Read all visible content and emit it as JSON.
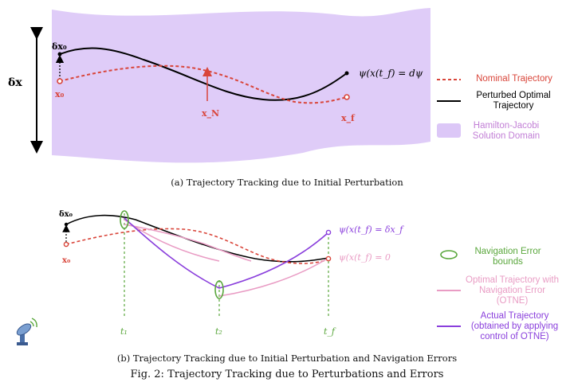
{
  "panel_a": {
    "caption": "(a) Trajectory Tracking due to Initial Perturbation",
    "labels": {
      "delta_x_axis": "δx",
      "delta_x0": "δx₀",
      "x0": "x₀",
      "xN": "x_N",
      "xf": "x_f",
      "terminal": "ψ(x(t_f) = dψ"
    },
    "legend": [
      {
        "name": "legend-nominal",
        "text": "Nominal Trajectory",
        "color": "#d9453a",
        "style": "dashed"
      },
      {
        "name": "legend-perturbed",
        "text": "Perturbed Optimal Trajectory",
        "color": "#000000",
        "style": "solid"
      },
      {
        "name": "legend-hj-domain",
        "text": "Hamilton-Jacobi Solution Domain",
        "color": "#dcc7f7",
        "style": "fill"
      }
    ]
  },
  "panel_b": {
    "caption": "(b) Trajectory Tracking due to Initial Perturbation and Navigation Errors",
    "labels": {
      "delta_x0": "δx₀",
      "x0": "x₀",
      "terminal_top": "ψ(x(t_f) = δx_f",
      "terminal_bottom": "ψ(x(t_f) = 0",
      "t1": "t₁",
      "t2": "t₂",
      "tf": "t_f"
    },
    "legend": [
      {
        "name": "legend-nav-error",
        "text": "Navigation Error bounds",
        "color": "#5aa73c"
      },
      {
        "name": "legend-otne",
        "text": "Optimal Trajectory with Navigation Error (OTNE)",
        "color": "#e99cc4"
      },
      {
        "name": "legend-actual",
        "text": "Actual Trajectory (obtained by applying control of OTNE)",
        "color": "#8a3fdc"
      }
    ]
  },
  "figure_caption": "Fig. 2: Trajectory Tracking due to Perturbations and Errors",
  "colors": {
    "nominal": "#d9453a",
    "perturbed": "#000000",
    "domain": "#dcc7f7",
    "nav_error": "#5aa73c",
    "otne": "#e99cc4",
    "actual": "#8a3fdc"
  },
  "icons": {
    "antenna": "satellite-dish-icon"
  }
}
